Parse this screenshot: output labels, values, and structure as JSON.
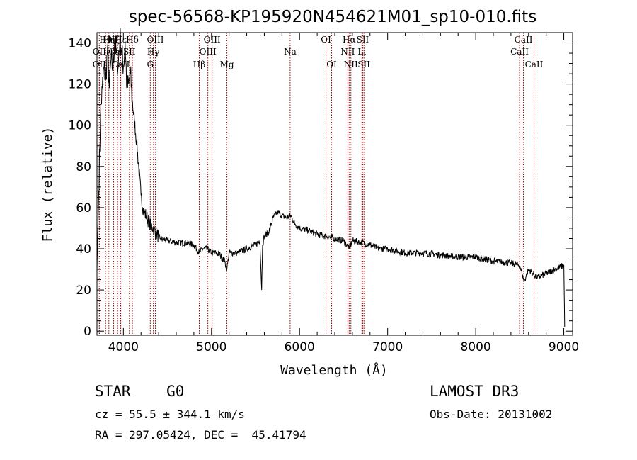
{
  "chart_data": {
    "type": "line",
    "title": "spec-56568-KP195920N454621M01_sp10-010.fits",
    "xlabel": "Wavelength (Å)",
    "ylabel": "Flux (relative)",
    "xlim": [
      3700,
      9100
    ],
    "ylim": [
      -2,
      145
    ],
    "xticks": [
      4000,
      5000,
      6000,
      7000,
      8000,
      9000
    ],
    "yticks": [
      0,
      20,
      40,
      60,
      80,
      100,
      120,
      140
    ],
    "series": [
      {
        "name": "flux",
        "x": [
          3700,
          3720,
          3740,
          3760,
          3780,
          3800,
          3820,
          3840,
          3860,
          3880,
          3900,
          3920,
          3940,
          3960,
          3980,
          4000,
          4020,
          4040,
          4060,
          4080,
          4100,
          4150,
          4200,
          4230,
          4260,
          4300,
          4340,
          4380,
          4420,
          4500,
          4600,
          4700,
          4800,
          4862,
          4900,
          4950,
          5000,
          5050,
          5100,
          5150,
          5175,
          5200,
          5300,
          5400,
          5500,
          5550,
          5570,
          5580,
          5600,
          5650,
          5700,
          5750,
          5800,
          5850,
          5900,
          5950,
          6000,
          6100,
          6200,
          6300,
          6400,
          6500,
          6563,
          6600,
          6700,
          6800,
          6900,
          7000,
          7200,
          7400,
          7600,
          7800,
          8000,
          8200,
          8400,
          8500,
          8550,
          8600,
          8650,
          8700,
          8800,
          8900,
          9000,
          9010
        ],
        "y": [
          30,
          68,
          105,
          118,
          128,
          122,
          138,
          118,
          132,
          128,
          140,
          135,
          128,
          143,
          136,
          128,
          140,
          118,
          120,
          125,
          112,
          92,
          66,
          58,
          56,
          52,
          50,
          47,
          45,
          44,
          43,
          43,
          42,
          38,
          40,
          40,
          38,
          38,
          37,
          34,
          30,
          38,
          38,
          40,
          42,
          44,
          20,
          42,
          46,
          48,
          55,
          58,
          56,
          55,
          56,
          52,
          50,
          49,
          47,
          46,
          45,
          44,
          40,
          44,
          43,
          42,
          40,
          40,
          38,
          38,
          37,
          36,
          36,
          34,
          33,
          32,
          24,
          30,
          28,
          26,
          28,
          30,
          32,
          2
        ]
      }
    ],
    "spectral_lines": [
      {
        "label": "Hθ",
        "wave": 3798,
        "row": 0
      },
      {
        "label": "OII",
        "wave": 3727,
        "row": 1
      },
      {
        "label": "OII",
        "wave": 3727,
        "row": 2
      },
      {
        "label": "Hη",
        "wave": 3835,
        "row": 0
      },
      {
        "label": "Hζ",
        "wave": 3889,
        "row": 0
      },
      {
        "label": "CaII",
        "wave": 3934,
        "row": 1
      },
      {
        "label": "Hε",
        "wave": 3970,
        "row": 0
      },
      {
        "label": "CaII",
        "wave": 3969,
        "row": 2
      },
      {
        "label": "SII",
        "wave": 4068,
        "row": 1
      },
      {
        "label": "Hδ",
        "wave": 4102,
        "row": 0
      },
      {
        "label": "OIII",
        "wave": 4363,
        "row": 0
      },
      {
        "label": "Hγ",
        "wave": 4340,
        "row": 1
      },
      {
        "label": "G",
        "wave": 4305,
        "row": 2
      },
      {
        "label": "Hβ",
        "wave": 4861,
        "row": 2
      },
      {
        "label": "OIII",
        "wave": 5007,
        "row": 0
      },
      {
        "label": "OIII",
        "wave": 4959,
        "row": 1
      },
      {
        "label": "Mg",
        "wave": 5175,
        "row": 2
      },
      {
        "label": "Na",
        "wave": 5893,
        "row": 1
      },
      {
        "label": "OI",
        "wave": 6300,
        "row": 0
      },
      {
        "label": "OI",
        "wave": 6364,
        "row": 2
      },
      {
        "label": "Hα",
        "wave": 6563,
        "row": 0
      },
      {
        "label": "NII",
        "wave": 6548,
        "row": 1
      },
      {
        "label": "NII",
        "wave": 6583,
        "row": 2
      },
      {
        "label": "SII",
        "wave": 6717,
        "row": 0
      },
      {
        "label": "Li",
        "wave": 6708,
        "row": 1
      },
      {
        "label": "SII",
        "wave": 6731,
        "row": 2
      },
      {
        "label": "CaII",
        "wave": 8542,
        "row": 0
      },
      {
        "label": "CaII",
        "wave": 8498,
        "row": 1
      },
      {
        "label": "CaII",
        "wave": 8662,
        "row": 2
      }
    ],
    "line_color": "#000000",
    "marker_color": "#aa0000"
  },
  "info": {
    "class": "STAR    G0",
    "survey": "LAMOST DR3",
    "cz": "cz = 55.5 ± 344.1 km/s",
    "obs_date": "Obs-Date: 20131002",
    "radec": "RA = 297.05424, DEC =  45.41794"
  }
}
